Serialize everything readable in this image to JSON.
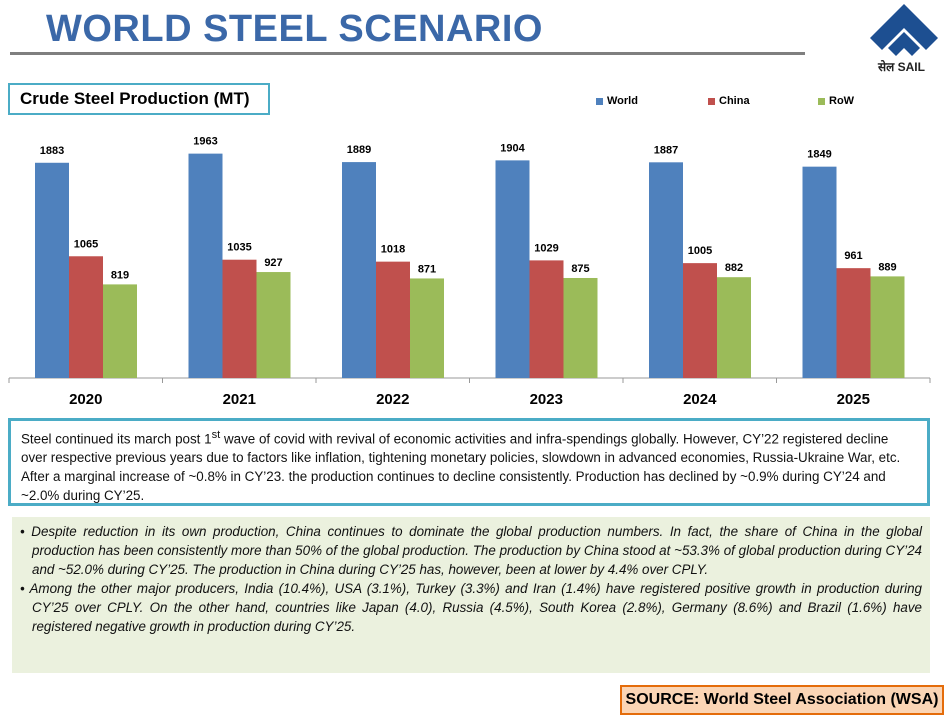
{
  "header": {
    "title": "WORLD STEEL SCENARIO",
    "logo_text": "सेल SAIL"
  },
  "chart_data": {
    "type": "bar",
    "title": "Crude Steel Production (MT)",
    "categories": [
      "2020",
      "2021",
      "2022",
      "2023",
      "2024",
      "2025"
    ],
    "series": [
      {
        "name": "World",
        "color": "#4f81bd",
        "values": [
          1883,
          1963,
          1889,
          1904,
          1887,
          1849
        ]
      },
      {
        "name": "China",
        "color": "#c0504d",
        "values": [
          1065,
          1035,
          1018,
          1029,
          1005,
          961
        ]
      },
      {
        "name": "RoW",
        "color": "#9bbb59",
        "values": [
          819,
          927,
          871,
          875,
          882,
          889
        ]
      }
    ],
    "ylim": [
      0,
      2000
    ],
    "grid": false,
    "legend_position": "top-right"
  },
  "note": {
    "pre": "Steel continued its march post 1",
    "sup": "st",
    "post": " wave of covid with revival of economic activities and infra-spendings globally. However, CY’22 registered decline over respective previous years due to factors like inflation, tightening monetary policies, slowdown in advanced economies, Russia-Ukraine War, etc. After a marginal increase of ~0.8% in CY’23. the production continues to decline consistently. Production has declined by ~0.9% during CY’24 and ~2.0% during CY’25."
  },
  "bullets": [
    "Despite reduction in its own production, China continues to dominate the global production numbers. In fact, the share of China in the global production has been consistently more than 50% of the global production. The production by China stood at ~53.3% of global production during CY’24 and ~52.0% during CY’25. The production in China during CY’25 has, however, been at lower by 4.4% over CPLY.",
    "Among the other major producers, India (10.4%), USA (3.1%), Turkey (3.3%) and Iran (1.4%) have registered positive growth in production during CY’25 over CPLY. On the other hand, countries like Japan (4.0), Russia (4.5%), South Korea (2.8%), Germany (8.6%) and Brazil (1.6%) have registered negative growth in production during CY’25."
  ],
  "source": "SOURCE: World Steel Association (WSA)"
}
